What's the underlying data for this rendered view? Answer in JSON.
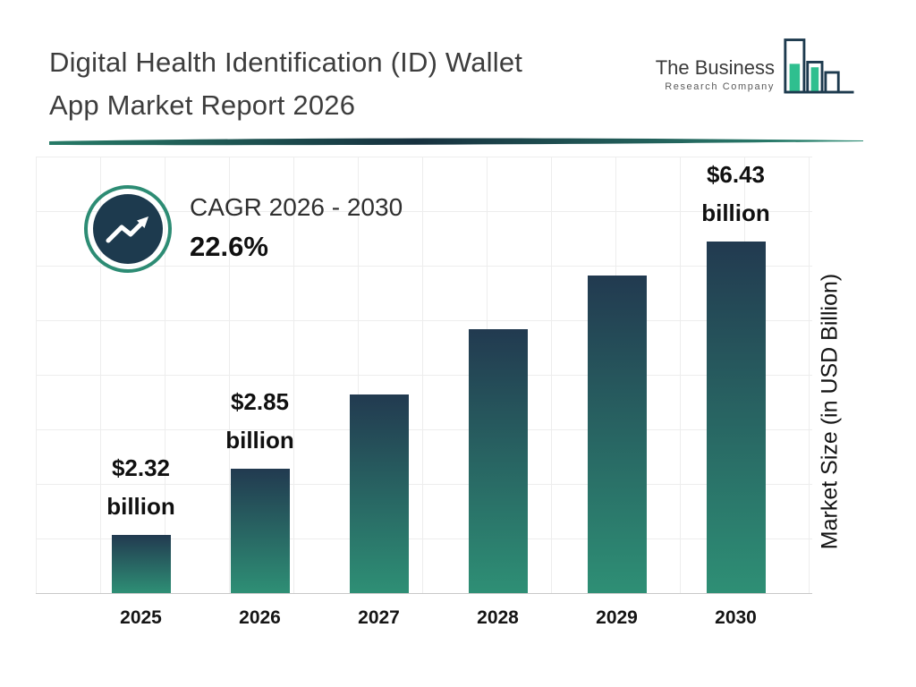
{
  "header": {
    "title_line1": "Digital Health Identification (ID) Wallet",
    "title_line2": "App Market Report 2026"
  },
  "logo": {
    "line1": "The Business",
    "line2": "Research Company"
  },
  "cagr": {
    "label": "CAGR 2026 - 2030",
    "value": "22.6%"
  },
  "ylabel": "Market Size (in USD Billion)",
  "chart_data": {
    "type": "bar",
    "title": "Digital Health Identification (ID) Wallet App Market Report 2026",
    "ylabel": "Market Size (in USD Billion)",
    "unit": "USD Billion",
    "cagr_label": "CAGR 2026 - 2030",
    "cagr_value": "22.6%",
    "categories": [
      "2025",
      "2026",
      "2027",
      "2028",
      "2029",
      "2030"
    ],
    "values": [
      2.32,
      2.85,
      3.49,
      4.28,
      5.25,
      6.43
    ],
    "labeled_values": {
      "2025": "$2.32 billion",
      "2026": "$2.85 billion",
      "2030": "$6.43 billion"
    },
    "bars": [
      {
        "year": "2025",
        "value": 2.32,
        "label_line1": "$2.32",
        "label_line2": "billion",
        "height_pct": 13.4
      },
      {
        "year": "2026",
        "value": 2.85,
        "label_line1": "$2.85",
        "label_line2": "billion",
        "height_pct": 28.5
      },
      {
        "year": "2027",
        "value": 3.49,
        "label_line1": "",
        "label_line2": "",
        "height_pct": 45.4
      },
      {
        "year": "2028",
        "value": 4.28,
        "label_line1": "",
        "label_line2": "",
        "height_pct": 60.4
      },
      {
        "year": "2029",
        "value": 5.25,
        "label_line1": "",
        "label_line2": "",
        "height_pct": 72.8
      },
      {
        "year": "2030",
        "value": 6.43,
        "label_line1": "$6.43",
        "label_line2": "billion",
        "height_pct": 80.6
      }
    ],
    "colors": {
      "bar_top": "#223a50",
      "bar_bottom": "#2e8f75",
      "accent_teal": "#2d8c74",
      "navy": "#1d3a4e",
      "logo_teal": "#2fbf8f"
    },
    "grid": true,
    "legend": false,
    "ylim": [
      0,
      7
    ]
  }
}
